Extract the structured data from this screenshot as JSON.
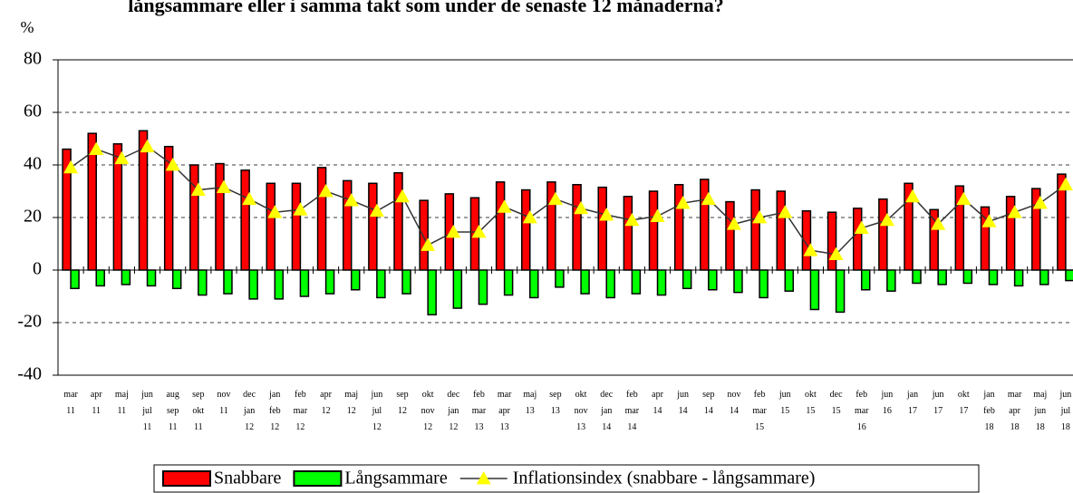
{
  "chart_data": {
    "type": "bar",
    "title": "långsammare eller i samma takt som under de senaste 12 månaderna?",
    "y_label": "%",
    "categories": [
      "mar 11",
      "apr 11",
      "maj 11",
      "jun jul 11",
      "aug sep 11",
      "sep okt 11",
      "nov 11",
      "dec jan 12",
      "jan feb 12",
      "feb mar 12",
      "apr 12",
      "maj 12",
      "jun jul 12",
      "sep 12",
      "okt nov 12",
      "dec jan 12",
      "feb mar 13",
      "mar apr 13",
      "maj 13",
      "sep 13",
      "okt nov 13",
      "dec jan 14",
      "feb mar 14",
      "apr 14",
      "jun 14",
      "sep 14",
      "nov 14",
      "feb mar 15",
      "jun 15",
      "okt 15",
      "dec 15",
      "feb mar 16",
      "jun 16",
      "jan 17",
      "jun 17",
      "okt 17",
      "jan feb 18",
      "mar apr 18",
      "maj jun 18",
      "jun jul 18"
    ],
    "series": [
      {
        "name": "Snabbare",
        "color": "#ff0000",
        "kind": "bar",
        "values": [
          46,
          52,
          48,
          53,
          47,
          40,
          40.5,
          38,
          33,
          33,
          39,
          34,
          33,
          37,
          26.5,
          29,
          27.5,
          33.5,
          30.5,
          33.5,
          32.5,
          31.5,
          28,
          30,
          32.5,
          34.5,
          26,
          30.5,
          30,
          22.5,
          22,
          23.5,
          27,
          33,
          23,
          32,
          24,
          28,
          31,
          36.5
        ]
      },
      {
        "name": "Långsammare",
        "color": "#00ff00",
        "kind": "bar",
        "values": [
          -7,
          -6,
          -5.5,
          -6,
          -7,
          -9.5,
          -9,
          -11,
          -11,
          -10,
          -9,
          -7.5,
          -10.5,
          -9,
          -17,
          -14.5,
          -13,
          -9.5,
          -10.5,
          -6.5,
          -9,
          -10.5,
          -9,
          -9.5,
          -7,
          -7.5,
          -8.5,
          -10.5,
          -8,
          -15,
          -16,
          -7.5,
          -8,
          -5,
          -5.5,
          -5,
          -5.5,
          -6,
          -5.5,
          -4
        ]
      },
      {
        "name": "Inflationsindex (snabbare - långsammare)",
        "color": "#ffff00",
        "kind": "line",
        "values": [
          39,
          46,
          42.5,
          47,
          40,
          30.5,
          31.5,
          27,
          22,
          23,
          30,
          26.5,
          22.5,
          28,
          9.5,
          14.5,
          14.5,
          24,
          20,
          27,
          23.5,
          21,
          19,
          20.5,
          25.5,
          27,
          17.5,
          20,
          22,
          7.5,
          6,
          16,
          19,
          28,
          17.5,
          27,
          18.5,
          22,
          25.5,
          32.5
        ]
      }
    ],
    "ylim": [
      -40,
      80
    ],
    "yticks": [
      -40,
      -20,
      0,
      20,
      40,
      60,
      80
    ],
    "grid": true
  }
}
